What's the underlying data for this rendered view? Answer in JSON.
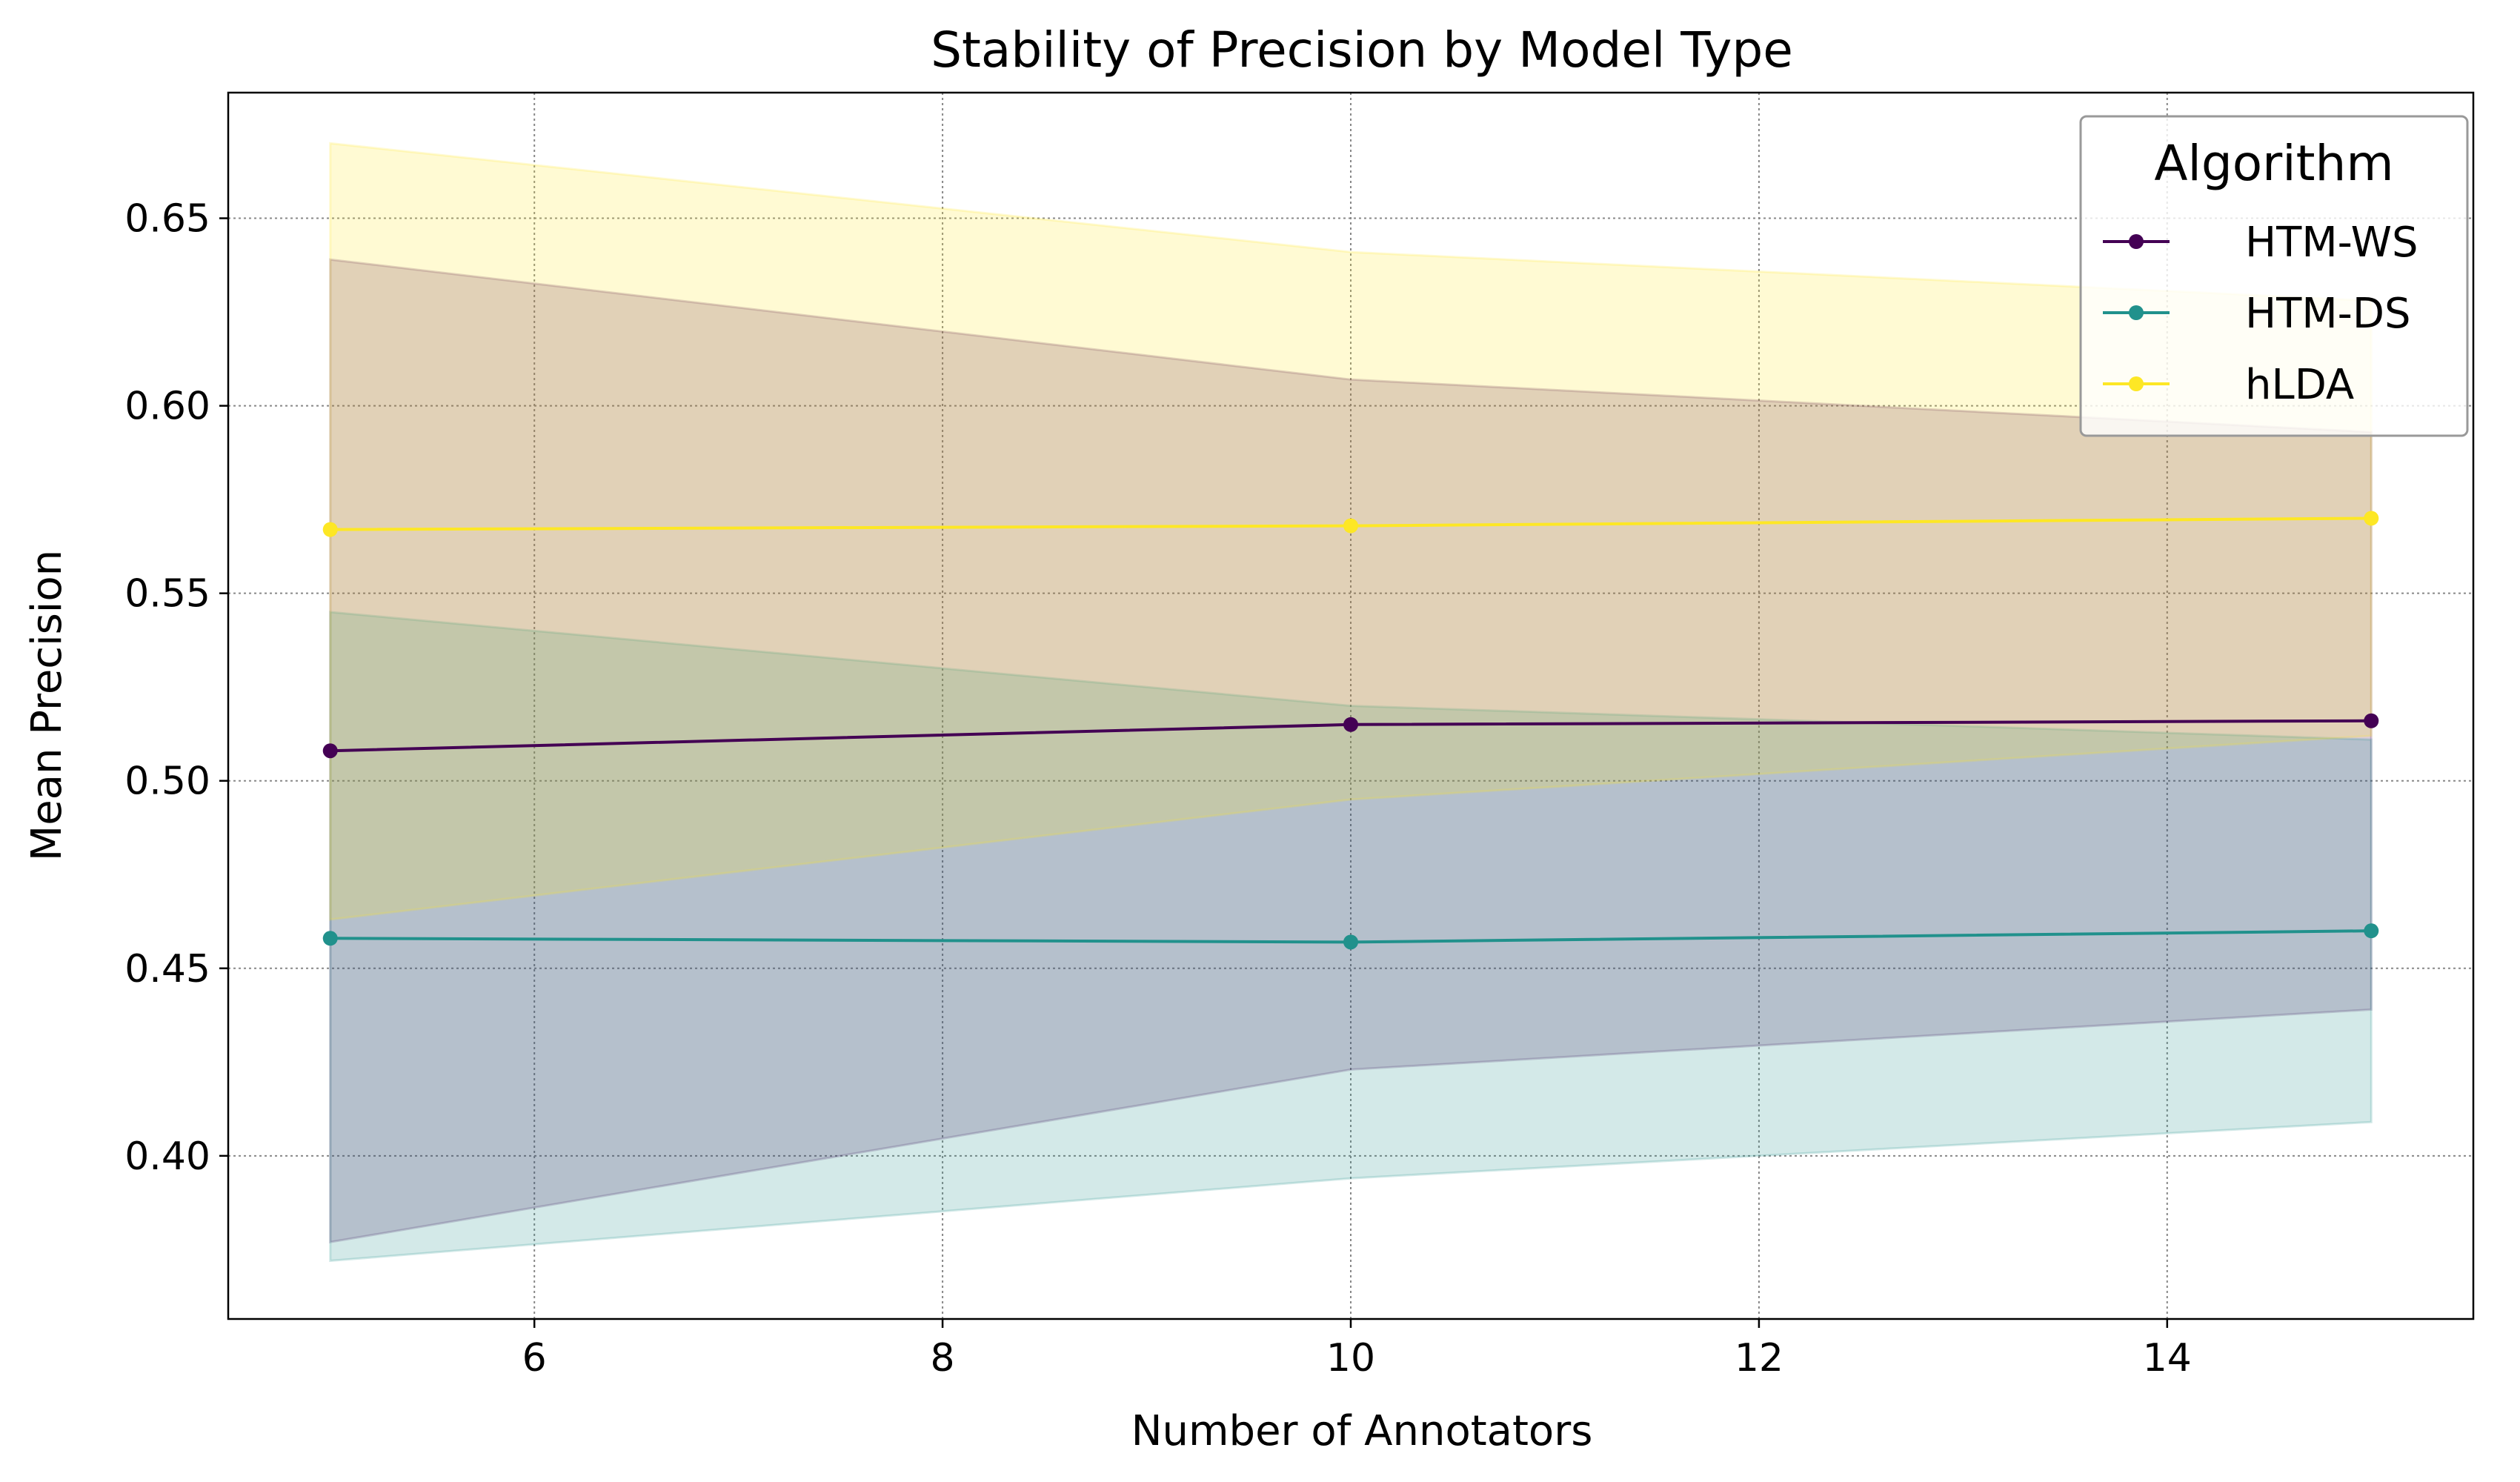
{
  "chart_data": {
    "type": "line",
    "title": "Stability of Precision by Model Type",
    "xlabel": "Number of Annotators",
    "ylabel": "Mean Precision",
    "xlim": [
      4.5,
      15.5
    ],
    "ylim": [
      0.3565,
      0.6835
    ],
    "xticks": [
      6,
      8,
      10,
      12,
      14
    ],
    "yticks": [
      0.4,
      0.45,
      0.5,
      0.55,
      0.6,
      0.65
    ],
    "ytick_format": 2,
    "grid": true,
    "legend": {
      "title": "Algorithm",
      "position": "top-right"
    },
    "x": [
      5,
      10,
      15
    ],
    "series": [
      {
        "name": "HTM-WS",
        "color": "#440154",
        "values": [
          0.508,
          0.515,
          0.516
        ],
        "band_lower": [
          0.377,
          0.423,
          0.439
        ],
        "band_upper": [
          0.639,
          0.607,
          0.593
        ]
      },
      {
        "name": "HTM-DS",
        "color": "#21918c",
        "values": [
          0.458,
          0.457,
          0.46
        ],
        "band_lower": [
          0.372,
          0.394,
          0.409
        ],
        "band_upper": [
          0.545,
          0.52,
          0.511
        ]
      },
      {
        "name": "hLDA",
        "color": "#fde725",
        "values": [
          0.567,
          0.568,
          0.57
        ],
        "band_lower": [
          0.463,
          0.495,
          0.512
        ],
        "band_upper": [
          0.67,
          0.641,
          0.628
        ]
      }
    ]
  }
}
